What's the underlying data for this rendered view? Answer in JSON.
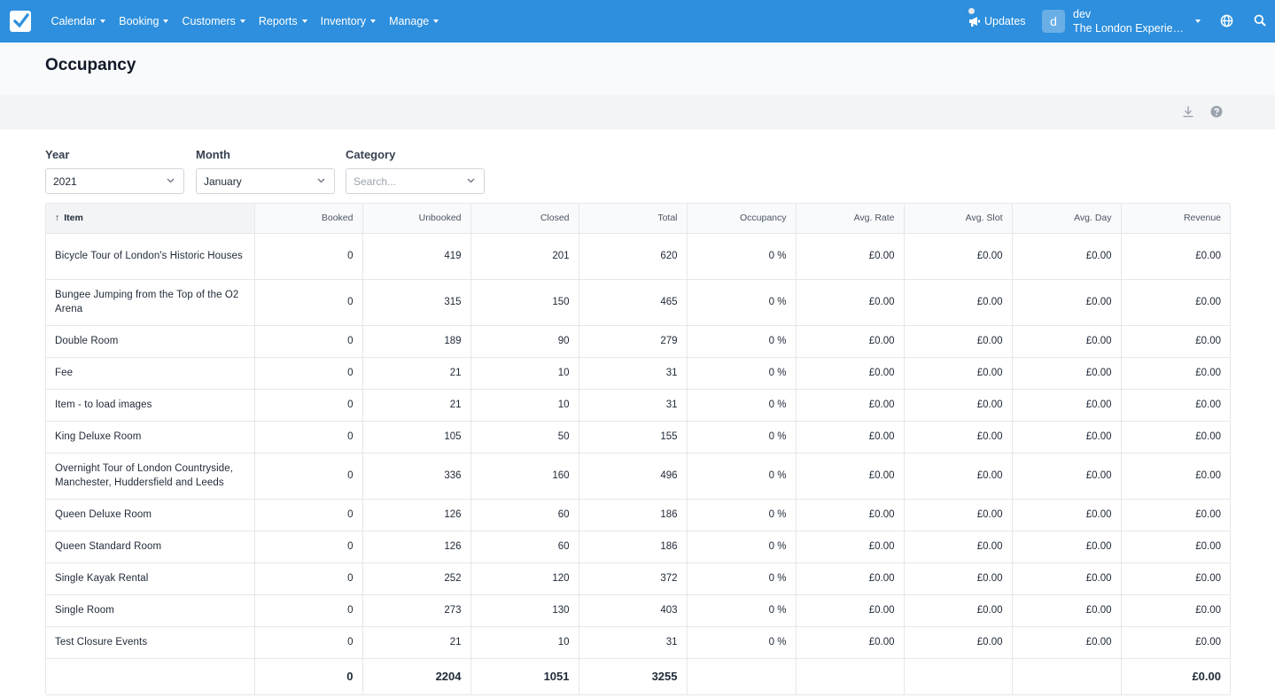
{
  "nav": {
    "menu": [
      {
        "label": "Calendar"
      },
      {
        "label": "Booking"
      },
      {
        "label": "Customers"
      },
      {
        "label": "Reports"
      },
      {
        "label": "Inventory"
      },
      {
        "label": "Manage"
      }
    ],
    "updates_label": "Updates",
    "avatar_letter": "d",
    "user": "dev",
    "org": "The London Experience",
    "icons": [
      "check-logo-icon",
      "megaphone-icon",
      "globe-icon",
      "search-icon"
    ],
    "accent": "#2d8fdd"
  },
  "page": {
    "title": "Occupancy",
    "icons": [
      "download-icon",
      "help-icon"
    ]
  },
  "filters": {
    "year": {
      "label": "Year",
      "value": "2021"
    },
    "month": {
      "label": "Month",
      "value": "January"
    },
    "category": {
      "label": "Category",
      "placeholder": "Search..."
    }
  },
  "table": {
    "headers": [
      "Item",
      "Booked",
      "Unbooked",
      "Closed",
      "Total",
      "Occupancy",
      "Avg. Rate",
      "Avg. Slot",
      "Avg. Day",
      "Revenue"
    ],
    "rows": [
      {
        "item": "Bicycle Tour of London's Historic Houses",
        "booked": "0",
        "unbooked": "419",
        "closed": "201",
        "total": "620",
        "occupancy": "0 %",
        "avg_rate": "£0.00",
        "avg_slot": "£0.00",
        "avg_day": "£0.00",
        "revenue": "£0.00"
      },
      {
        "item": "Bungee Jumping from the Top of the O2 Arena",
        "booked": "0",
        "unbooked": "315",
        "closed": "150",
        "total": "465",
        "occupancy": "0 %",
        "avg_rate": "£0.00",
        "avg_slot": "£0.00",
        "avg_day": "£0.00",
        "revenue": "£0.00"
      },
      {
        "item": "Double Room",
        "booked": "0",
        "unbooked": "189",
        "closed": "90",
        "total": "279",
        "occupancy": "0 %",
        "avg_rate": "£0.00",
        "avg_slot": "£0.00",
        "avg_day": "£0.00",
        "revenue": "£0.00"
      },
      {
        "item": "Fee",
        "booked": "0",
        "unbooked": "21",
        "closed": "10",
        "total": "31",
        "occupancy": "0 %",
        "avg_rate": "£0.00",
        "avg_slot": "£0.00",
        "avg_day": "£0.00",
        "revenue": "£0.00"
      },
      {
        "item": "Item - to load images",
        "booked": "0",
        "unbooked": "21",
        "closed": "10",
        "total": "31",
        "occupancy": "0 %",
        "avg_rate": "£0.00",
        "avg_slot": "£0.00",
        "avg_day": "£0.00",
        "revenue": "£0.00"
      },
      {
        "item": "King Deluxe Room",
        "booked": "0",
        "unbooked": "105",
        "closed": "50",
        "total": "155",
        "occupancy": "0 %",
        "avg_rate": "£0.00",
        "avg_slot": "£0.00",
        "avg_day": "£0.00",
        "revenue": "£0.00"
      },
      {
        "item": "Overnight Tour of London Countryside, Manchester, Huddersfield and Leeds",
        "booked": "0",
        "unbooked": "336",
        "closed": "160",
        "total": "496",
        "occupancy": "0 %",
        "avg_rate": "£0.00",
        "avg_slot": "£0.00",
        "avg_day": "£0.00",
        "revenue": "£0.00"
      },
      {
        "item": "Queen Deluxe Room",
        "booked": "0",
        "unbooked": "126",
        "closed": "60",
        "total": "186",
        "occupancy": "0 %",
        "avg_rate": "£0.00",
        "avg_slot": "£0.00",
        "avg_day": "£0.00",
        "revenue": "£0.00"
      },
      {
        "item": "Queen Standard Room",
        "booked": "0",
        "unbooked": "126",
        "closed": "60",
        "total": "186",
        "occupancy": "0 %",
        "avg_rate": "£0.00",
        "avg_slot": "£0.00",
        "avg_day": "£0.00",
        "revenue": "£0.00"
      },
      {
        "item": "Single Kayak Rental",
        "booked": "0",
        "unbooked": "252",
        "closed": "120",
        "total": "372",
        "occupancy": "0 %",
        "avg_rate": "£0.00",
        "avg_slot": "£0.00",
        "avg_day": "£0.00",
        "revenue": "£0.00"
      },
      {
        "item": "Single Room",
        "booked": "0",
        "unbooked": "273",
        "closed": "130",
        "total": "403",
        "occupancy": "0 %",
        "avg_rate": "£0.00",
        "avg_slot": "£0.00",
        "avg_day": "£0.00",
        "revenue": "£0.00"
      },
      {
        "item": "Test Closure Events",
        "booked": "0",
        "unbooked": "21",
        "closed": "10",
        "total": "31",
        "occupancy": "0 %",
        "avg_rate": "£0.00",
        "avg_slot": "£0.00",
        "avg_day": "£0.00",
        "revenue": "£0.00"
      }
    ],
    "totals": {
      "booked": "0",
      "unbooked": "2204",
      "closed": "1051",
      "total": "3255",
      "revenue": "£0.00"
    }
  }
}
